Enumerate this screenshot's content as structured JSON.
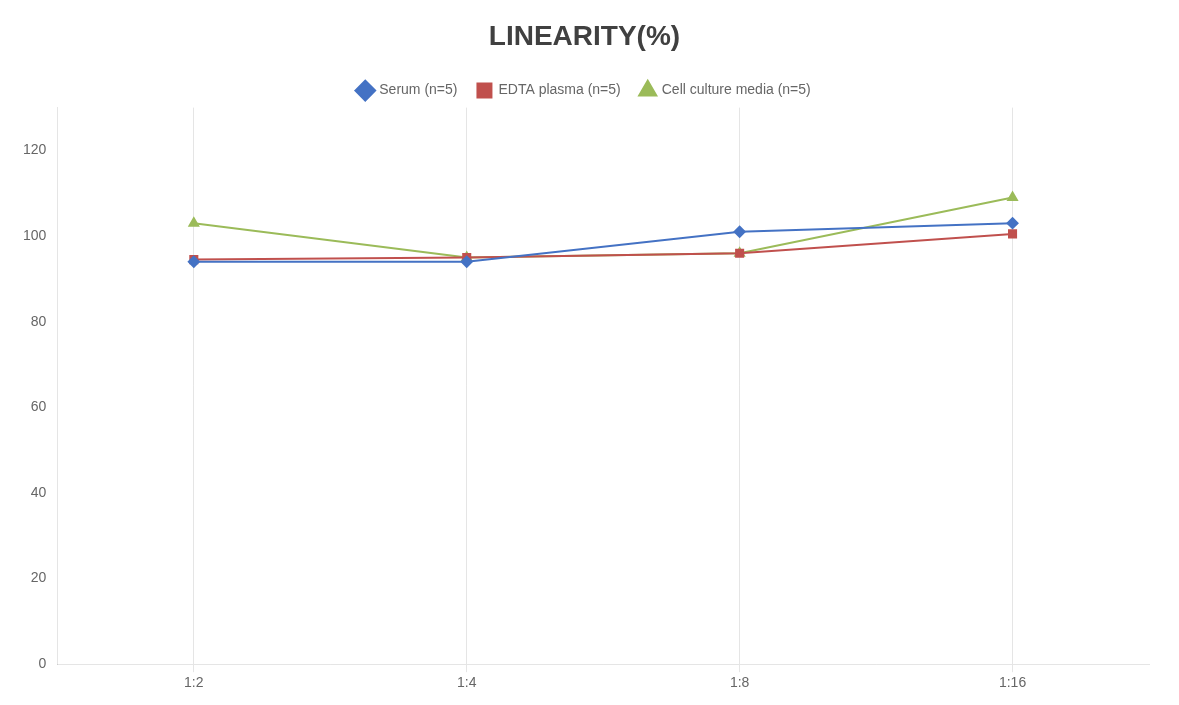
{
  "chart_data": {
    "type": "line",
    "title": "LINEARITY(%)",
    "categories": [
      "1:2",
      "1:4",
      "1:8",
      "1:16"
    ],
    "series": [
      {
        "name": "Serum (n=5)",
        "color": "#4472C4",
        "marker": "diamond",
        "values": [
          94,
          94,
          101,
          103
        ]
      },
      {
        "name": "EDTA plasma (n=5)",
        "color": "#C0504D",
        "marker": "square",
        "values": [
          94.5,
          95,
          96,
          100.5
        ]
      },
      {
        "name": "Cell culture media (n=5)",
        "color": "#9BBB59",
        "marker": "triangle",
        "values": [
          103,
          95,
          96,
          109
        ]
      }
    ],
    "ylim": [
      0,
      130
    ],
    "yticks": [
      0,
      20,
      40,
      60,
      80,
      100,
      120
    ],
    "grid": "x",
    "legend": "top"
  }
}
